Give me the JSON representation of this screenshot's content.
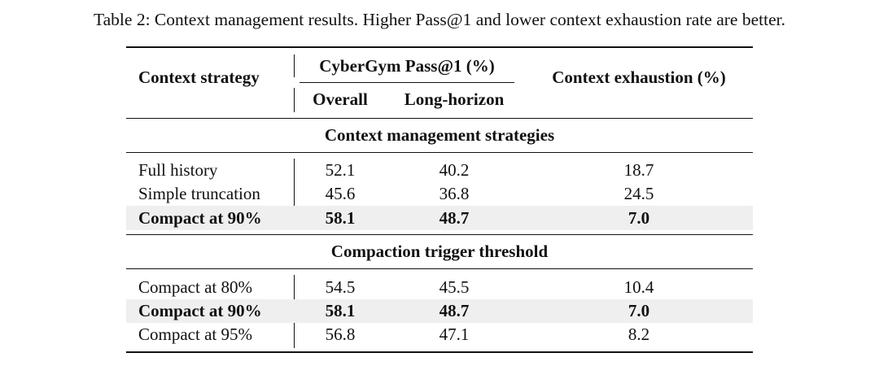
{
  "caption": "Table 2: Context management results. Higher Pass@1 and lower context exhaustion rate are better.",
  "header": {
    "context_strategy": "Context strategy",
    "group": "CyberGym Pass@1 (%)",
    "overall": "Overall",
    "long_horizon": "Long-horizon",
    "context_exhaustion": "Context exhaustion (%)"
  },
  "sections": [
    {
      "title": "Context management strategies",
      "rows": [
        {
          "label": "Full history",
          "overall": "52.1",
          "long_horizon": "40.2",
          "exhaustion": "18.7",
          "bold": false
        },
        {
          "label": "Simple truncation",
          "overall": "45.6",
          "long_horizon": "36.8",
          "exhaustion": "24.5",
          "bold": false
        },
        {
          "label": "Compact at 90%",
          "overall": "58.1",
          "long_horizon": "48.7",
          "exhaustion": "7.0",
          "bold": true
        }
      ]
    },
    {
      "title": "Compaction trigger threshold",
      "rows": [
        {
          "label": "Compact at 80%",
          "overall": "54.5",
          "long_horizon": "45.5",
          "exhaustion": "10.4",
          "bold": false
        },
        {
          "label": "Compact at 90%",
          "overall": "58.1",
          "long_horizon": "48.7",
          "exhaustion": "7.0",
          "bold": true
        },
        {
          "label": "Compact at 95%",
          "overall": "56.8",
          "long_horizon": "47.1",
          "exhaustion": "8.2",
          "bold": false
        }
      ]
    }
  ]
}
